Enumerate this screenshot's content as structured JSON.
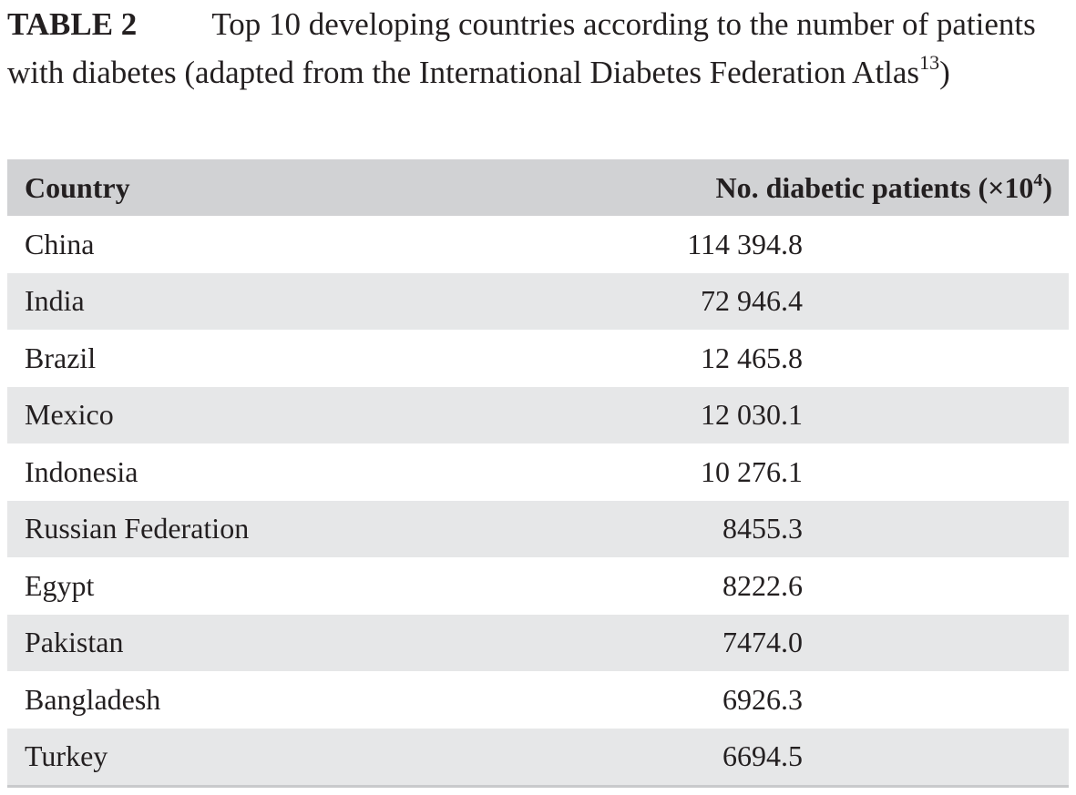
{
  "caption": {
    "label": "TABLE 2",
    "text": "Top 10 developing countries according to the number of patients with diabetes (adapted from the International Diabetes Federation Atlas",
    "reference": "13",
    "close": ")"
  },
  "table": {
    "headers": {
      "country": "Country",
      "patients_prefix": "No. diabetic patients (×10",
      "patients_exponent": "4",
      "patients_suffix": ")"
    },
    "rows": [
      {
        "country": "China",
        "patients": "114 394.8"
      },
      {
        "country": "India",
        "patients": "72 946.4"
      },
      {
        "country": "Brazil",
        "patients": "12 465.8"
      },
      {
        "country": "Mexico",
        "patients": "12 030.1"
      },
      {
        "country": "Indonesia",
        "patients": "10 276.1"
      },
      {
        "country": "Russian Federation",
        "patients": "8455.3"
      },
      {
        "country": "Egypt",
        "patients": "8222.6"
      },
      {
        "country": "Pakistan",
        "patients": "7474.0"
      },
      {
        "country": "Bangladesh",
        "patients": "6926.3"
      },
      {
        "country": "Turkey",
        "patients": "6694.5"
      }
    ]
  }
}
